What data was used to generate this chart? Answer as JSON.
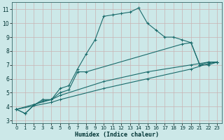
{
  "xlabel": "Humidex (Indice chaleur)",
  "bg_color": "#cce8e8",
  "grid_color": "#b8c8c8",
  "line_color": "#1a6b6b",
  "xlim": [
    -0.5,
    23.5
  ],
  "ylim": [
    2.8,
    11.5
  ],
  "xticks": [
    0,
    1,
    2,
    3,
    4,
    5,
    6,
    7,
    8,
    9,
    10,
    11,
    12,
    13,
    14,
    15,
    16,
    17,
    18,
    19,
    20,
    21,
    22,
    23
  ],
  "yticks": [
    3,
    4,
    5,
    6,
    7,
    8,
    9,
    10,
    11
  ],
  "line1_x": [
    0,
    1,
    2,
    3,
    4,
    5,
    6,
    7,
    8,
    9,
    10,
    11,
    12,
    13,
    14,
    15,
    16,
    17,
    18,
    19,
    20,
    21,
    22,
    23
  ],
  "line1_y": [
    3.8,
    3.5,
    4.1,
    4.5,
    4.5,
    5.3,
    5.5,
    6.7,
    7.8,
    8.8,
    10.5,
    10.6,
    10.7,
    10.8,
    11.1,
    10.0,
    9.5,
    9.0,
    9.0,
    8.8,
    8.6,
    7.0,
    7.2,
    7.2
  ],
  "line2_x": [
    0,
    1,
    2,
    3,
    4,
    5,
    6,
    7,
    8,
    19,
    20,
    21,
    22,
    23
  ],
  "line2_y": [
    3.8,
    3.5,
    4.1,
    4.4,
    4.5,
    5.0,
    5.2,
    6.5,
    6.5,
    8.5,
    8.6,
    7.0,
    7.0,
    7.2
  ],
  "line3_x": [
    0,
    4,
    5,
    10,
    15,
    20,
    22,
    23
  ],
  "line3_y": [
    3.8,
    4.5,
    4.8,
    5.8,
    6.5,
    7.0,
    7.2,
    7.2
  ],
  "line4_x": [
    0,
    4,
    5,
    10,
    15,
    20,
    22,
    23
  ],
  "line4_y": [
    3.8,
    4.3,
    4.5,
    5.3,
    6.0,
    6.7,
    7.1,
    7.2
  ]
}
